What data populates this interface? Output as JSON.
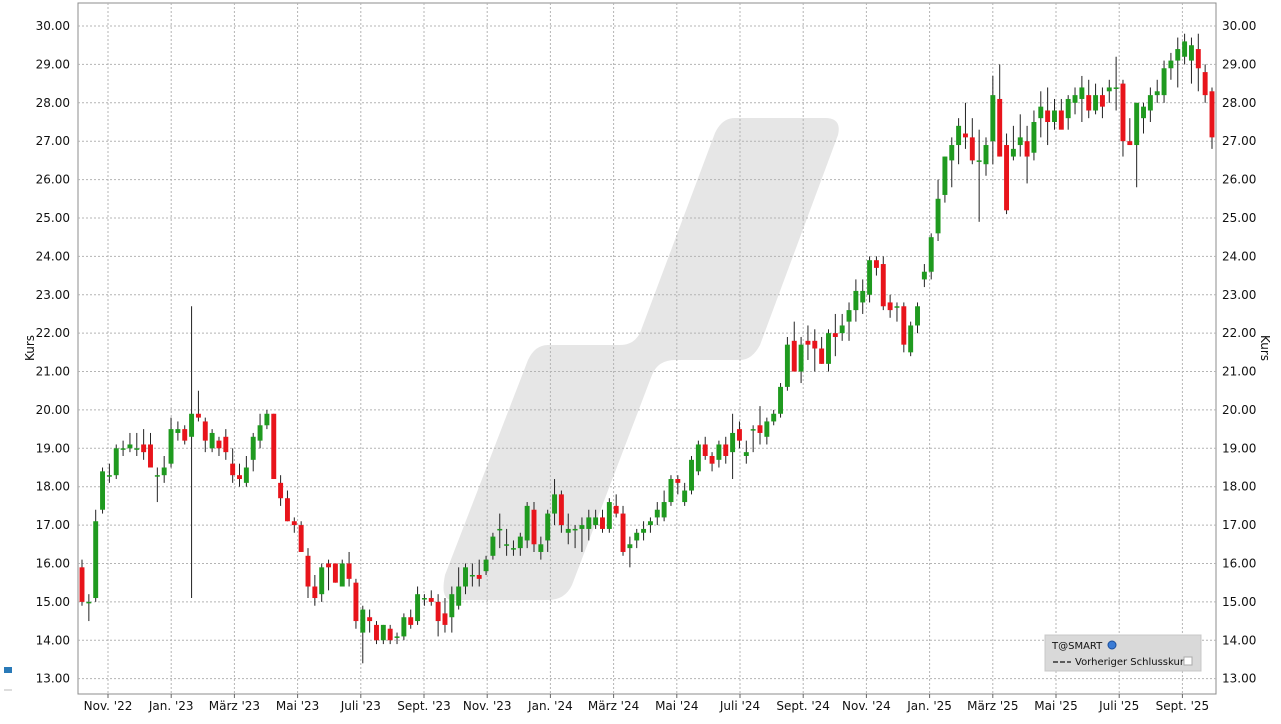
{
  "chart_data": {
    "type": "candlestick",
    "ylabel_left": "Kurs",
    "ylabel_right": "Kurs",
    "ylim": [
      12.6,
      30.6
    ],
    "grid": true,
    "y_ticks": [
      "13.00",
      "14.00",
      "15.00",
      "16.00",
      "17.00",
      "18.00",
      "19.00",
      "20.00",
      "21.00",
      "22.00",
      "23.00",
      "24.00",
      "25.00",
      "26.00",
      "27.00",
      "28.00",
      "29.00",
      "30.00"
    ],
    "x_ticks": [
      "Nov. '22",
      "Jan. '23",
      "März '23",
      "Mai '23",
      "Juli '23",
      "Sept. '23",
      "Nov. '23",
      "Jan. '24",
      "März '24",
      "Mai '24",
      "Juli '24",
      "Sept. '24",
      "Nov. '24",
      "Jan. '25",
      "März '25",
      "Mai '25",
      "Juli '25",
      "Sept. '25"
    ],
    "legend": {
      "position": "bottom-right",
      "title": "T@SMART",
      "entries": [
        "Vorheriger Schlusskurs"
      ]
    },
    "up_color": "#1f9a1f",
    "down_color": "#e8141b",
    "candles": [
      [
        15.9,
        16.1,
        14.9,
        15.0
      ],
      [
        15.0,
        15.2,
        14.5,
        15.0
      ],
      [
        15.1,
        17.4,
        15.0,
        17.1
      ],
      [
        17.4,
        18.5,
        17.3,
        18.4
      ],
      [
        18.3,
        18.6,
        18.1,
        18.3
      ],
      [
        18.3,
        19.1,
        18.2,
        19.0
      ],
      [
        19.0,
        19.2,
        18.8,
        19.0
      ],
      [
        19.0,
        19.4,
        18.9,
        19.1
      ],
      [
        19.0,
        19.4,
        18.8,
        19.0
      ],
      [
        19.1,
        19.5,
        18.7,
        18.9
      ],
      [
        19.1,
        19.4,
        18.5,
        18.5
      ],
      [
        18.3,
        18.5,
        17.6,
        18.3
      ],
      [
        18.3,
        18.8,
        18.1,
        18.5
      ],
      [
        18.6,
        19.8,
        18.5,
        19.5
      ],
      [
        19.4,
        19.7,
        19.2,
        19.5
      ],
      [
        19.5,
        19.6,
        19.1,
        19.2
      ],
      [
        19.3,
        22.7,
        15.1,
        19.9
      ],
      [
        19.9,
        20.5,
        19.7,
        19.8
      ],
      [
        19.7,
        19.8,
        18.9,
        19.2
      ],
      [
        19.0,
        19.5,
        18.9,
        19.4
      ],
      [
        19.2,
        19.3,
        18.8,
        19.0
      ],
      [
        19.3,
        19.5,
        18.7,
        18.9
      ],
      [
        18.6,
        19.0,
        18.1,
        18.3
      ],
      [
        18.3,
        18.6,
        18.0,
        18.2
      ],
      [
        18.1,
        18.8,
        18.0,
        18.5
      ],
      [
        18.7,
        19.4,
        18.4,
        19.3
      ],
      [
        19.2,
        19.9,
        19.0,
        19.6
      ],
      [
        19.6,
        20.0,
        19.5,
        19.9
      ],
      [
        19.9,
        19.9,
        18.2,
        18.2
      ],
      [
        18.1,
        18.3,
        17.5,
        17.7
      ],
      [
        17.7,
        17.9,
        17.1,
        17.1
      ],
      [
        17.1,
        17.2,
        16.8,
        17.0
      ],
      [
        17.0,
        17.1,
        16.3,
        16.3
      ],
      [
        16.2,
        16.4,
        15.1,
        15.4
      ],
      [
        15.4,
        15.7,
        14.9,
        15.1
      ],
      [
        15.2,
        16.0,
        15.0,
        15.9
      ],
      [
        16.0,
        16.1,
        15.3,
        15.9
      ],
      [
        16.0,
        16.0,
        15.5,
        15.5
      ],
      [
        15.4,
        16.1,
        15.4,
        16.0
      ],
      [
        16.0,
        16.3,
        15.4,
        15.6
      ],
      [
        15.5,
        15.6,
        14.3,
        14.5
      ],
      [
        14.2,
        14.9,
        13.4,
        14.8
      ],
      [
        14.6,
        14.8,
        14.2,
        14.5
      ],
      [
        14.4,
        14.5,
        13.9,
        14.0
      ],
      [
        14.0,
        14.4,
        13.9,
        14.4
      ],
      [
        14.3,
        14.4,
        13.9,
        14.0
      ],
      [
        14.1,
        14.2,
        13.9,
        14.1
      ],
      [
        14.1,
        14.7,
        14.0,
        14.6
      ],
      [
        14.6,
        14.8,
        14.3,
        14.4
      ],
      [
        14.5,
        15.4,
        14.4,
        15.2
      ],
      [
        15.1,
        15.2,
        14.9,
        15.1
      ],
      [
        15.1,
        15.3,
        14.9,
        15.0
      ],
      [
        15.0,
        15.2,
        14.1,
        14.5
      ],
      [
        14.7,
        15.1,
        14.2,
        14.4
      ],
      [
        14.6,
        15.4,
        14.2,
        15.2
      ],
      [
        14.9,
        15.9,
        14.8,
        15.4
      ],
      [
        15.4,
        16.0,
        15.2,
        15.9
      ],
      [
        15.7,
        16.0,
        15.4,
        15.7
      ],
      [
        15.7,
        16.1,
        15.4,
        15.6
      ],
      [
        15.8,
        16.2,
        15.7,
        16.1
      ],
      [
        16.2,
        16.8,
        16.1,
        16.7
      ],
      [
        16.9,
        17.3,
        16.4,
        16.9
      ],
      [
        16.5,
        16.9,
        16.2,
        16.5
      ],
      [
        16.4,
        16.6,
        16.2,
        16.4
      ],
      [
        16.4,
        16.8,
        16.2,
        16.7
      ],
      [
        16.6,
        17.6,
        16.4,
        17.5
      ],
      [
        17.4,
        17.6,
        16.3,
        16.5
      ],
      [
        16.3,
        16.7,
        16.1,
        16.5
      ],
      [
        16.6,
        17.4,
        16.3,
        17.3
      ],
      [
        17.3,
        18.2,
        17.0,
        17.8
      ],
      [
        17.8,
        17.9,
        16.8,
        17.0
      ],
      [
        16.8,
        17.3,
        16.5,
        16.9
      ],
      [
        16.9,
        17.0,
        16.4,
        16.9
      ],
      [
        16.9,
        17.2,
        16.3,
        17.0
      ],
      [
        16.9,
        17.4,
        16.6,
        17.2
      ],
      [
        17.0,
        17.4,
        16.9,
        17.2
      ],
      [
        17.2,
        17.4,
        16.8,
        16.9
      ],
      [
        16.9,
        17.7,
        16.8,
        17.6
      ],
      [
        17.5,
        17.8,
        17.2,
        17.3
      ],
      [
        17.3,
        17.5,
        16.2,
        16.3
      ],
      [
        16.4,
        16.7,
        15.9,
        16.5
      ],
      [
        16.6,
        16.9,
        16.4,
        16.8
      ],
      [
        16.8,
        17.1,
        16.6,
        16.9
      ],
      [
        17.0,
        17.2,
        16.8,
        17.1
      ],
      [
        17.2,
        17.6,
        17.0,
        17.4
      ],
      [
        17.2,
        17.9,
        17.1,
        17.6
      ],
      [
        17.6,
        18.3,
        17.5,
        18.2
      ],
      [
        18.2,
        18.3,
        17.8,
        18.1
      ],
      [
        17.6,
        18.1,
        17.5,
        17.9
      ],
      [
        17.9,
        18.8,
        17.8,
        18.7
      ],
      [
        18.4,
        19.2,
        18.3,
        19.1
      ],
      [
        19.1,
        19.3,
        18.7,
        18.8
      ],
      [
        18.8,
        18.9,
        18.4,
        18.6
      ],
      [
        18.7,
        19.2,
        18.5,
        19.1
      ],
      [
        19.1,
        19.3,
        18.6,
        18.8
      ],
      [
        18.9,
        19.9,
        18.2,
        19.4
      ],
      [
        19.5,
        19.7,
        19.0,
        19.2
      ],
      [
        18.8,
        19.2,
        18.6,
        18.9
      ],
      [
        19.5,
        19.6,
        18.9,
        19.5
      ],
      [
        19.6,
        20.1,
        19.1,
        19.4
      ],
      [
        19.3,
        19.8,
        19.1,
        19.7
      ],
      [
        19.7,
        20.0,
        19.6,
        19.9
      ],
      [
        19.9,
        20.7,
        19.8,
        20.6
      ],
      [
        20.6,
        21.9,
        20.5,
        21.7
      ],
      [
        21.8,
        22.3,
        21.0,
        21.0
      ],
      [
        21.0,
        21.9,
        20.7,
        21.7
      ],
      [
        21.8,
        22.2,
        21.3,
        21.7
      ],
      [
        21.8,
        22.1,
        21.0,
        21.6
      ],
      [
        21.6,
        21.9,
        21.2,
        21.2
      ],
      [
        21.2,
        22.1,
        21.0,
        22.0
      ],
      [
        22.0,
        22.5,
        21.4,
        21.9
      ],
      [
        22.0,
        22.5,
        21.8,
        22.2
      ],
      [
        22.3,
        22.8,
        21.8,
        22.6
      ],
      [
        22.6,
        23.4,
        22.3,
        23.1
      ],
      [
        22.8,
        23.4,
        22.5,
        23.1
      ],
      [
        23.0,
        24.0,
        22.8,
        23.9
      ],
      [
        23.9,
        24.0,
        23.5,
        23.7
      ],
      [
        23.8,
        24.0,
        22.6,
        22.7
      ],
      [
        22.8,
        23.0,
        22.4,
        22.6
      ],
      [
        22.7,
        22.8,
        22.3,
        22.7
      ],
      [
        22.7,
        22.8,
        21.5,
        21.7
      ],
      [
        21.5,
        22.3,
        21.4,
        22.2
      ],
      [
        22.2,
        22.8,
        22.0,
        22.7
      ],
      [
        23.4,
        23.8,
        23.2,
        23.6
      ],
      [
        23.6,
        24.6,
        23.4,
        24.5
      ],
      [
        24.6,
        26.0,
        24.4,
        25.5
      ],
      [
        25.6,
        26.6,
        25.4,
        26.6
      ],
      [
        26.5,
        27.1,
        25.8,
        26.9
      ],
      [
        26.9,
        27.6,
        26.4,
        27.4
      ],
      [
        27.2,
        28.0,
        26.8,
        27.1
      ],
      [
        27.1,
        27.6,
        26.4,
        26.5
      ],
      [
        26.5,
        27.3,
        24.9,
        26.5
      ],
      [
        26.4,
        27.1,
        26.1,
        26.9
      ],
      [
        27.0,
        28.7,
        26.4,
        28.2
      ],
      [
        28.1,
        29.0,
        26.6,
        26.6
      ],
      [
        26.9,
        27.2,
        25.1,
        25.2
      ],
      [
        26.6,
        27.4,
        26.5,
        26.8
      ],
      [
        26.9,
        27.7,
        26.6,
        27.1
      ],
      [
        27.0,
        27.4,
        25.9,
        26.6
      ],
      [
        26.7,
        27.8,
        26.5,
        27.5
      ],
      [
        27.6,
        28.3,
        27.1,
        27.9
      ],
      [
        27.8,
        28.4,
        26.9,
        27.5
      ],
      [
        27.5,
        28.1,
        27.3,
        27.8
      ],
      [
        27.8,
        28.1,
        27.4,
        27.3
      ],
      [
        27.6,
        28.2,
        27.3,
        28.1
      ],
      [
        28.0,
        28.4,
        27.7,
        28.2
      ],
      [
        28.1,
        28.7,
        27.5,
        28.4
      ],
      [
        28.2,
        28.6,
        27.6,
        27.8
      ],
      [
        27.8,
        28.5,
        27.7,
        28.2
      ],
      [
        28.2,
        28.4,
        27.6,
        27.9
      ],
      [
        28.3,
        28.6,
        28.0,
        28.4
      ],
      [
        28.4,
        29.2,
        27.8,
        28.4
      ],
      [
        28.5,
        28.6,
        26.6,
        27.0
      ],
      [
        27.0,
        27.6,
        26.9,
        26.9
      ],
      [
        26.9,
        28.0,
        25.8,
        28.0
      ],
      [
        27.6,
        28.0,
        27.2,
        27.9
      ],
      [
        27.8,
        28.4,
        27.5,
        28.2
      ],
      [
        28.2,
        28.6,
        28.0,
        28.3
      ],
      [
        28.2,
        29.1,
        28.0,
        28.9
      ],
      [
        28.9,
        29.3,
        28.6,
        29.1
      ],
      [
        29.1,
        29.7,
        28.4,
        29.4
      ],
      [
        29.2,
        29.8,
        29.0,
        29.6
      ],
      [
        29.1,
        29.7,
        28.5,
        29.5
      ],
      [
        29.4,
        29.8,
        28.3,
        28.9
      ],
      [
        28.8,
        29.0,
        28.0,
        28.2
      ],
      [
        28.3,
        28.4,
        26.8,
        27.1
      ]
    ]
  }
}
